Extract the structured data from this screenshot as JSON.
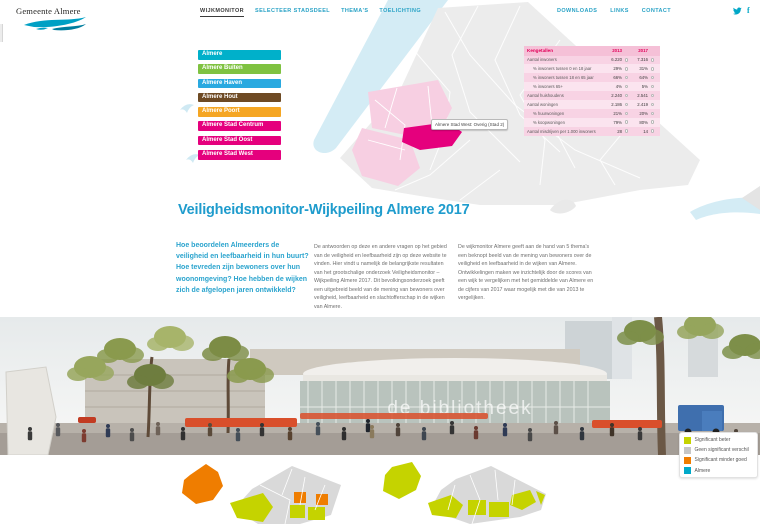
{
  "brand": {
    "name": "Gemeente Almere"
  },
  "nav": {
    "primary": [
      {
        "label": "WIJKMONITOR",
        "active": true
      },
      {
        "label": "SELECTEER STADSDEEL",
        "active": false
      },
      {
        "label": "THEMA'S",
        "active": false
      },
      {
        "label": "TOELICHTING",
        "active": false
      }
    ],
    "secondary": [
      "DOWNLOADS",
      "LINKS",
      "CONTACT"
    ],
    "social": [
      "twitter-icon",
      "facebook-icon"
    ]
  },
  "sidebar": {
    "items": [
      {
        "label": "Almere",
        "color": "#00b0ca"
      },
      {
        "label": "Almere Buiten",
        "color": "#7fc241"
      },
      {
        "label": "Almere Haven",
        "color": "#29a9e0"
      },
      {
        "label": "Almere Hout",
        "color": "#6e4a24"
      },
      {
        "label": "Almere Poort",
        "color": "#f5a623"
      },
      {
        "label": "Almere Stad Centrum",
        "color": "#e5007d"
      },
      {
        "label": "Almere Stad Oost",
        "color": "#e5007d"
      },
      {
        "label": "Almere Stad West",
        "color": "#e5007d"
      }
    ]
  },
  "map": {
    "tooltip": "Almere Stad West: Overig (Stad 2)",
    "selected_color": "#e5007d",
    "district_color": "#f7cfe2",
    "water_color": "#d4ecf5"
  },
  "table": {
    "title": "Kengetallen",
    "columns": [
      "2013",
      "2017"
    ],
    "rows": [
      {
        "label": "Aantal inwoners",
        "v2013": "6.220",
        "v2017": "7.316",
        "indent": false
      },
      {
        "label": "% inwoners tussen 0 en 18 jaar",
        "v2013": "29%",
        "v2017": "31%",
        "indent": true
      },
      {
        "label": "% inwoners tussen 18 en 65 jaar",
        "v2013": "66%",
        "v2017": "64%",
        "indent": true
      },
      {
        "label": "% inwoners 65+",
        "v2013": "4%",
        "v2017": "5%",
        "indent": true
      },
      {
        "label": "Aantal huishoudens",
        "v2013": "2.240",
        "v2017": "2.541",
        "indent": false
      },
      {
        "label": "Aantal woningen",
        "v2013": "2.186",
        "v2017": "2.419",
        "indent": false
      },
      {
        "label": "% huurwoningen",
        "v2013": "21%",
        "v2017": "20%",
        "indent": true
      },
      {
        "label": "% koopwoningen",
        "v2013": "79%",
        "v2017": "80%",
        "indent": true
      },
      {
        "label": "Aantal misdrijven per 1.000 inwoners",
        "v2013": "28",
        "v2017": "14",
        "indent": false
      }
    ]
  },
  "content": {
    "title": "Veiligheidsmonitor-Wijkpeiling Almere 2017",
    "question": "Hoe beoordelen Almeerders de veiligheid en leefbaarheid in hun buurt? Hoe tevreden zijn bewoners over hun woonomgeving? Hoe hebben de wijken zich de afgelopen jaren ontwikkeld?",
    "col1": "De antwoorden op deze en andere vragen op het gebied van de veiligheid en leefbaarheid zijn op deze website te vinden. Hier vindt u namelijk de belangrijkste resultaten van het grootschalige onderzoek Veiligheidsmonitor – Wijkpeiling Almere 2017. Dit bevolkingsonderzoek geeft een uitgebreid beeld van de mening van bewoners over veiligheid, leefbaarheid en slachtofferschap in de wijken van Almere.",
    "col2": "De wijkmonitor Almere geeft aan de hand van 5 thema's een beknopt beeld van de mening van bewoners over de veiligheid en leefbaarheid in de wijken van Almere. Ontwikkelingen maken we inzichtelijk door de scores van een wijk te vergelijken met het gemiddelde van Almere en de cijfers van 2017 waar mogelijk met die van 2013 te vergelijken."
  },
  "photo": {
    "building_text": "de bibliotheek"
  },
  "legend": {
    "items": [
      {
        "label": "Significant beter",
        "color": "#c5d300"
      },
      {
        "label": "Geen significant verschil",
        "color": "#c6c6c6"
      },
      {
        "label": "Significant minder goed",
        "color": "#ef7d00"
      },
      {
        "label": "Almere",
        "color": "#00a9c9"
      }
    ]
  }
}
